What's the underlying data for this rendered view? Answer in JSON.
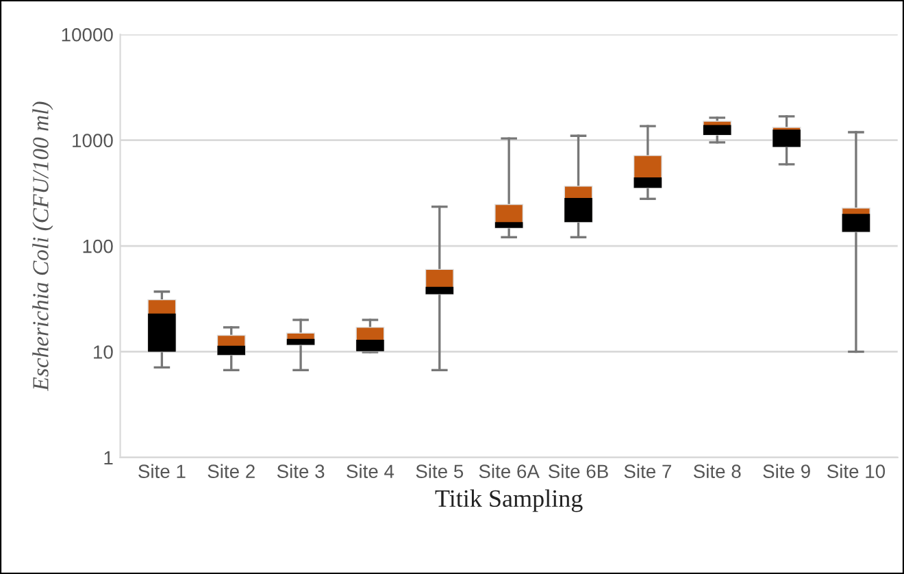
{
  "chart_data": {
    "type": "box",
    "ylabel": "Escherichia Coli (CFU/100 ml)",
    "xlabel": "Titik Sampling",
    "categories": [
      "Site 1",
      "Site 2",
      "Site 3",
      "Site 4",
      "Site 5",
      "Site 6A",
      "Site 6B",
      "Site 7",
      "Site 8",
      "Site 9",
      "Site 10"
    ],
    "color": "#c55a11",
    "boxes": [
      {
        "low": 7.1,
        "q1": 10,
        "median": 23,
        "q3": 31,
        "high": 37
      },
      {
        "low": 6.7,
        "q1": 9.3,
        "median": 11.4,
        "q3": 14.3,
        "high": 17
      },
      {
        "low": 6.7,
        "q1": 11.6,
        "median": 13.2,
        "q3": 15,
        "high": 20
      },
      {
        "low": 9.9,
        "q1": 10.1,
        "median": 13,
        "q3": 17,
        "high": 20
      },
      {
        "low": 6.7,
        "q1": 35,
        "median": 41,
        "q3": 60,
        "high": 235
      },
      {
        "low": 121,
        "q1": 148,
        "median": 168,
        "q3": 247,
        "high": 1040
      },
      {
        "low": 121,
        "q1": 168,
        "median": 284,
        "q3": 367,
        "high": 1100
      },
      {
        "low": 279,
        "q1": 354,
        "median": 445,
        "q3": 716,
        "high": 1360
      },
      {
        "low": 953,
        "q1": 1120,
        "median": 1390,
        "q3": 1510,
        "high": 1630
      },
      {
        "low": 591,
        "q1": 865,
        "median": 1260,
        "q3": 1320,
        "high": 1680
      },
      {
        "low": 10,
        "q1": 136,
        "median": 201,
        "q3": 228,
        "high": 1190
      }
    ],
    "log": true,
    "ylim": [
      1,
      10000
    ],
    "yticks": [
      1,
      10,
      100,
      1000,
      10000
    ],
    "grid": "y"
  }
}
